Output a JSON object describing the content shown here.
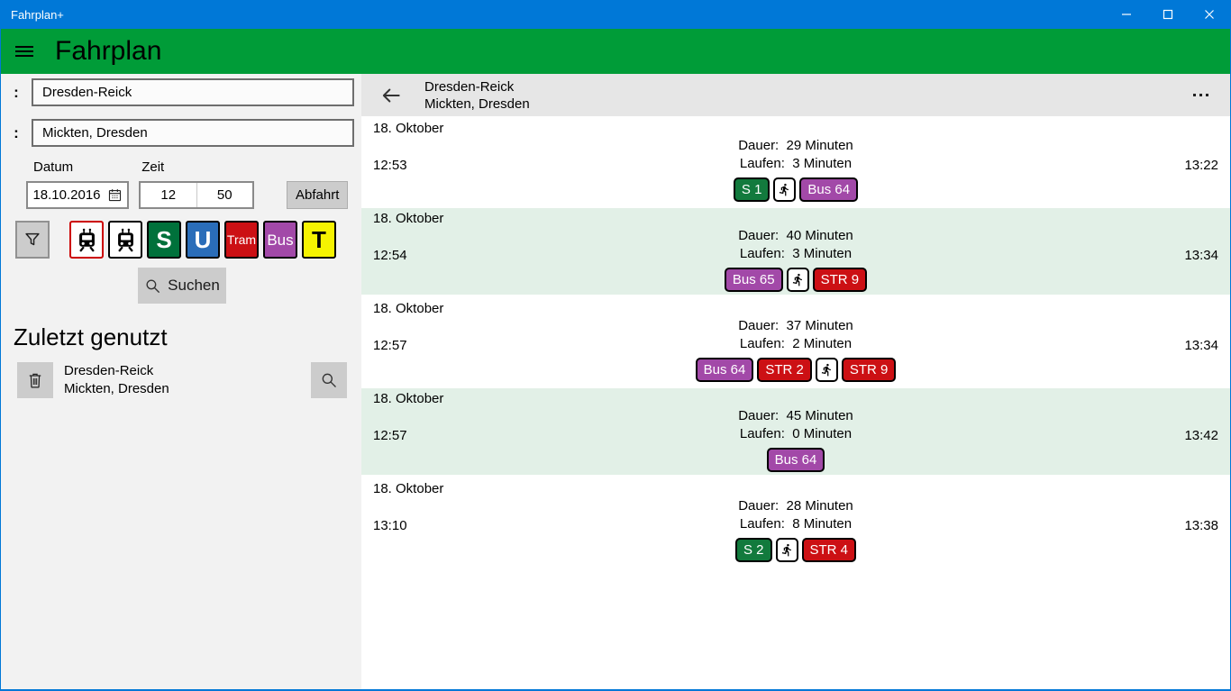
{
  "window": {
    "title": "Fahrplan+"
  },
  "appbar": {
    "title": "Fahrplan"
  },
  "sidebar": {
    "from_value": "Dresden-Reick",
    "to_value": "Mickten, Dresden",
    "date_label": "Datum",
    "time_label": "Zeit",
    "date_value": "18.10.2016",
    "hour_value": "12",
    "minute_value": "50",
    "mode_button": "Abfahrt",
    "search_button": "Suchen",
    "recent_heading": "Zuletzt genutzt",
    "recent_items": [
      {
        "from": "Dresden-Reick",
        "to": "Mickten, Dresden"
      }
    ],
    "toggles": [
      {
        "id": "train-intercity",
        "kind": "train-icon",
        "bg": "#FFFFFF",
        "border": "#CC0000",
        "selected": false
      },
      {
        "id": "train-regional",
        "kind": "train-icon",
        "bg": "#FFFFFF",
        "border": "#000000",
        "selected": true
      },
      {
        "id": "sbahn",
        "kind": "text",
        "label": "S",
        "bg": "#00713B",
        "fg": "#FFFFFF",
        "font": 26,
        "bold": true
      },
      {
        "id": "ubahn",
        "kind": "text",
        "label": "U",
        "bg": "#2A6DB9",
        "fg": "#FFFFFF",
        "font": 26,
        "bold": true
      },
      {
        "id": "tram",
        "kind": "text",
        "label": "Tram",
        "bg": "#CC1014",
        "fg": "#FFFFFF",
        "font": 14,
        "bold": false
      },
      {
        "id": "bus",
        "kind": "text",
        "label": "Bus",
        "bg": "#A249A8",
        "fg": "#FFFFFF",
        "font": 17,
        "bold": false
      },
      {
        "id": "taxi",
        "kind": "text",
        "label": "T",
        "bg": "#F6F301",
        "fg": "#000000",
        "font": 26,
        "bold": true
      }
    ]
  },
  "results": {
    "header": {
      "from": "Dresden-Reick",
      "to": "Mickten, Dresden"
    },
    "duration_label": "Dauer:",
    "walk_label": "Laufen:",
    "journeys": [
      {
        "date": "18. Oktober",
        "depart": "12:53",
        "arrive": "13:22",
        "duration": "29 Minuten",
        "walk": "3 Minuten",
        "highlight": false,
        "legs": [
          {
            "kind": "line",
            "label": "S 1",
            "bg": "#127A3D"
          },
          {
            "kind": "walk"
          },
          {
            "kind": "line",
            "label": "Bus 64",
            "bg": "#A249A8"
          }
        ]
      },
      {
        "date": "18. Oktober",
        "depart": "12:54",
        "arrive": "13:34",
        "duration": "40 Minuten",
        "walk": "3 Minuten",
        "highlight": true,
        "legs": [
          {
            "kind": "line",
            "label": "Bus 65",
            "bg": "#A249A8"
          },
          {
            "kind": "walk"
          },
          {
            "kind": "line",
            "label": "STR 9",
            "bg": "#CC1014"
          }
        ]
      },
      {
        "date": "18. Oktober",
        "depart": "12:57",
        "arrive": "13:34",
        "duration": "37 Minuten",
        "walk": "2 Minuten",
        "highlight": false,
        "legs": [
          {
            "kind": "line",
            "label": "Bus 64",
            "bg": "#A249A8"
          },
          {
            "kind": "line",
            "label": "STR 2",
            "bg": "#CC1014"
          },
          {
            "kind": "walk"
          },
          {
            "kind": "line",
            "label": "STR 9",
            "bg": "#CC1014"
          }
        ]
      },
      {
        "date": "18. Oktober",
        "depart": "12:57",
        "arrive": "13:42",
        "duration": "45 Minuten",
        "walk": "0 Minuten",
        "highlight": true,
        "legs": [
          {
            "kind": "line",
            "label": "Bus 64",
            "bg": "#A249A8"
          }
        ]
      },
      {
        "date": "18. Oktober",
        "depart": "13:10",
        "arrive": "13:38",
        "duration": "28 Minuten",
        "walk": "8 Minuten",
        "highlight": false,
        "legs": [
          {
            "kind": "line",
            "label": "S 2",
            "bg": "#127A3D"
          },
          {
            "kind": "walk"
          },
          {
            "kind": "line",
            "label": "STR 4",
            "bg": "#CC1014"
          }
        ]
      }
    ]
  },
  "icons": {
    "hamburger_menu": "three-bars",
    "window_minimize": "minus-line",
    "window_maximize": "square-outline",
    "window_close": "x-cross",
    "location_marker": ":",
    "calendar": "calendar-grid",
    "filter": "funnel-outline",
    "search": "magnifier",
    "delete": "trash-can",
    "back": "left-arrow",
    "more": "ellipsis-dots",
    "walk": "running-person",
    "train": "train-front"
  },
  "colors": {
    "titlebar": "#0078D7",
    "appbar_green": "#009C38",
    "panel_gray": "#F2F2F2",
    "header_gray": "#E6E6E6",
    "button_gray": "#CCCCCC",
    "row_highlight": "#E2F0E7"
  }
}
